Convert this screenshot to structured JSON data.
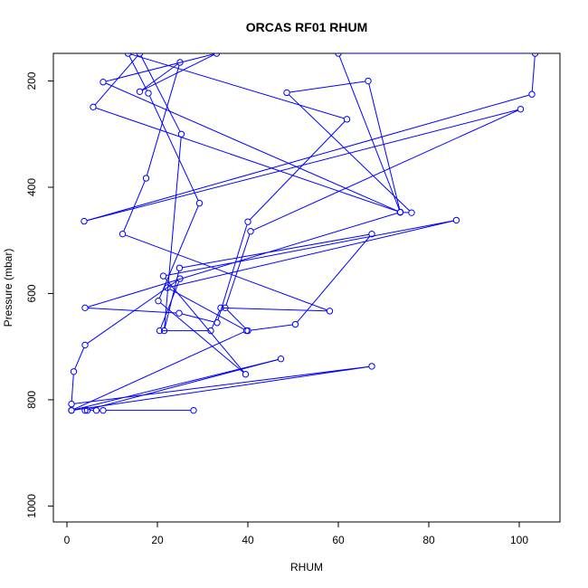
{
  "chart_data": {
    "type": "line",
    "title": "ORCAS RF01 RHUM",
    "xlabel": "RHUM",
    "ylabel": "Pressure (mbar)",
    "xlim": [
      -3,
      109
    ],
    "ylim": [
      1030,
      148
    ],
    "y_reversed": true,
    "x_ticks": [
      0,
      20,
      40,
      60,
      80,
      100
    ],
    "y_ticks": [
      200,
      400,
      600,
      800,
      1000
    ],
    "grid": false,
    "legend": "none",
    "series": [
      {
        "color": "#0000ff",
        "marker": "open-circle",
        "points": [
          [
            28.0,
            820
          ],
          [
            8.0,
            820
          ],
          [
            6.5,
            820
          ],
          [
            4.5,
            820
          ],
          [
            4.0,
            820
          ],
          [
            47.3,
            723
          ],
          [
            1.0,
            820
          ],
          [
            67.4,
            737
          ],
          [
            1.0,
            808
          ],
          [
            1.5,
            747
          ],
          [
            4.0,
            697
          ],
          [
            25.0,
            572
          ],
          [
            20.5,
            670
          ],
          [
            31.8,
            670
          ],
          [
            34.0,
            627
          ],
          [
            58.1,
            633
          ],
          [
            12.3,
            488
          ],
          [
            17.5,
            383
          ],
          [
            25.0,
            165
          ],
          [
            16.1,
            220
          ],
          [
            33.1,
            148
          ],
          [
            8.0,
            202
          ],
          [
            73.7,
            447
          ],
          [
            60.0,
            148
          ],
          [
            103.5,
            148
          ],
          [
            102.8,
            225
          ],
          [
            3.8,
            464
          ],
          [
            100.3,
            253
          ],
          [
            40.6,
            483
          ],
          [
            35.0,
            627
          ],
          [
            40.0,
            670
          ],
          [
            50.5,
            658
          ],
          [
            67.4,
            488
          ],
          [
            24.9,
            552
          ],
          [
            21.5,
            670
          ],
          [
            25.3,
            300
          ],
          [
            16.1,
            148
          ],
          [
            5.8,
            249
          ],
          [
            73.7,
            447
          ],
          [
            76.2,
            448
          ],
          [
            48.6,
            222
          ],
          [
            66.6,
            200
          ],
          [
            73.7,
            447
          ],
          [
            4.0,
            627
          ],
          [
            24.8,
            637
          ],
          [
            33.2,
            655
          ],
          [
            40.0,
            465
          ],
          [
            61.9,
            272
          ],
          [
            13.5,
            148
          ],
          [
            18.0,
            223
          ],
          [
            29.3,
            430
          ],
          [
            20.2,
            614
          ],
          [
            39.5,
            752
          ],
          [
            21.3,
            567
          ],
          [
            86.1,
            462
          ],
          [
            22.2,
            589
          ],
          [
            39.7,
            670
          ],
          [
            1.0,
            820
          ]
        ]
      }
    ]
  }
}
